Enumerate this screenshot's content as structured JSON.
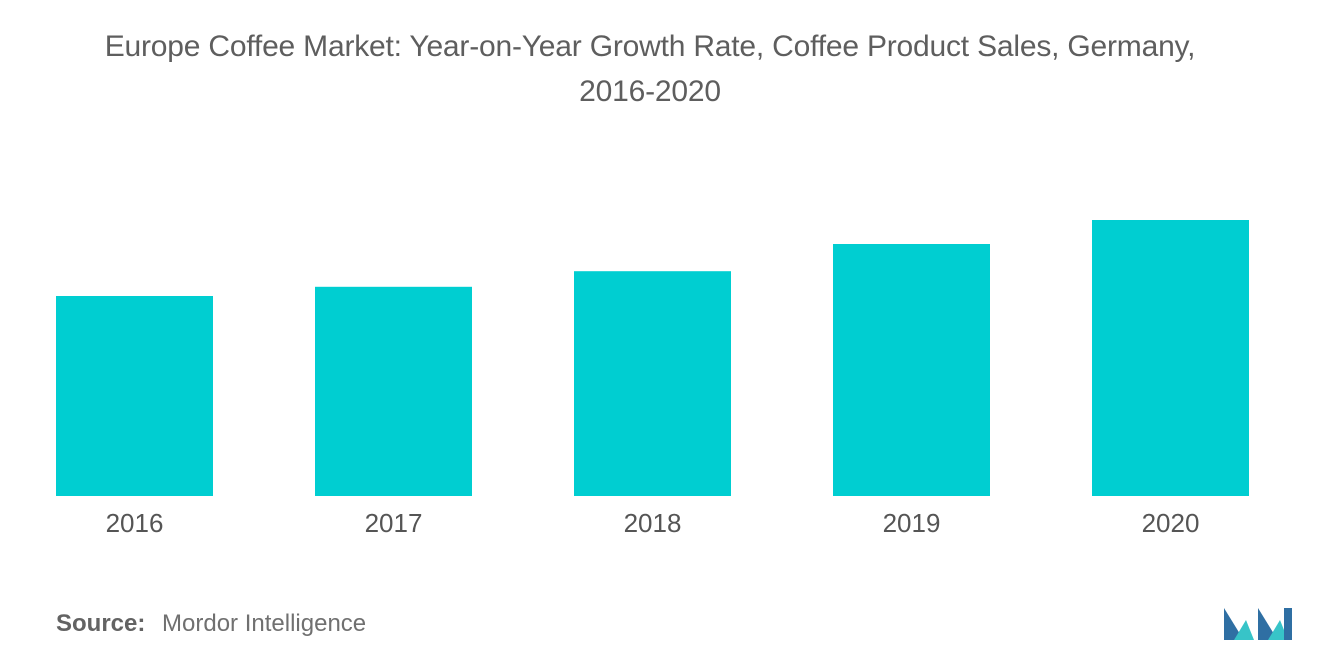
{
  "chart_data": {
    "type": "bar",
    "title": "Europe Coffee Market: Year-on-Year Growth Rate, Coffee Product Sales, Germany, 2016-2020",
    "categories": [
      "2016",
      "2017",
      "2018",
      "2019",
      "2020"
    ],
    "values": [
      50,
      52.3,
      56.2,
      63,
      69
    ],
    "xlabel": "",
    "ylabel": "",
    "ylim": [
      0,
      100
    ],
    "grid": false,
    "legend": "none",
    "bar_color": "#00ced1"
  },
  "title_line1": "Europe Coffee Market: Year-on-Year Growth Rate, Coffee Product Sales, Germany,",
  "title_line2": "2016-2020",
  "source": {
    "label": "Source:",
    "text": "Mordor Intelligence"
  },
  "logo": {
    "icon": "mordor-intelligence-logo-icon",
    "color_dark": "#2f6fa3",
    "color_light": "#37c4c8"
  }
}
